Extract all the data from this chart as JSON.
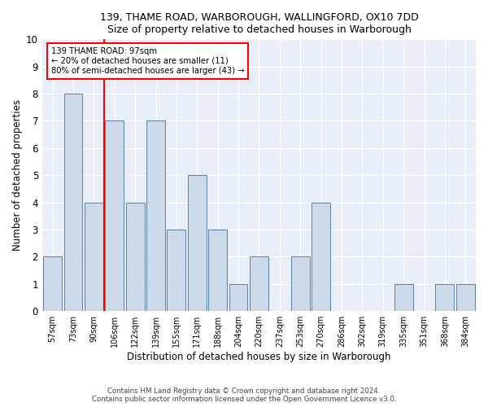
{
  "title1": "139, THAME ROAD, WARBOROUGH, WALLINGFORD, OX10 7DD",
  "title2": "Size of property relative to detached houses in Warborough",
  "xlabel": "Distribution of detached houses by size in Warborough",
  "ylabel": "Number of detached properties",
  "categories": [
    "57sqm",
    "73sqm",
    "90sqm",
    "106sqm",
    "122sqm",
    "139sqm",
    "155sqm",
    "171sqm",
    "188sqm",
    "204sqm",
    "220sqm",
    "237sqm",
    "253sqm",
    "270sqm",
    "286sqm",
    "302sqm",
    "319sqm",
    "335sqm",
    "351sqm",
    "368sqm",
    "384sqm"
  ],
  "values": [
    2,
    8,
    4,
    7,
    4,
    7,
    3,
    5,
    3,
    1,
    2,
    0,
    2,
    4,
    0,
    0,
    0,
    1,
    0,
    1,
    1
  ],
  "bar_color": "#ccd9e8",
  "bar_edge_color": "#5b7fa6",
  "red_line_index": 2.5,
  "annotation_line1": "139 THAME ROAD: 97sqm",
  "annotation_line2": "← 20% of detached houses are smaller (11)",
  "annotation_line3": "80% of semi-detached houses are larger (43) →",
  "ylim": [
    0,
    10
  ],
  "yticks": [
    0,
    1,
    2,
    3,
    4,
    5,
    6,
    7,
    8,
    9,
    10
  ],
  "footer1": "Contains HM Land Registry data © Crown copyright and database right 2024.",
  "footer2": "Contains public sector information licensed under the Open Government Licence v3.0.",
  "bg_color": "#ffffff",
  "plot_bg_color": "#e8eef8"
}
